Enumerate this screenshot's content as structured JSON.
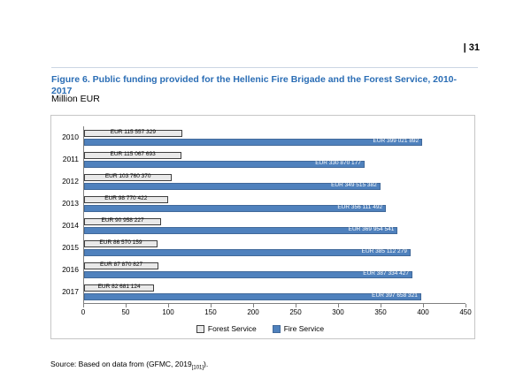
{
  "page": {
    "number": "| 31"
  },
  "figure": {
    "title": "Figure 6. Public funding provided for the Hellenic Fire Brigade and the Forest Service, 2010-2017",
    "unit_label": "Million EUR"
  },
  "source": {
    "prefix": "Source: Based on data from (GFMC, 2019",
    "ref": "[101]",
    "suffix": ")."
  },
  "chart_data": {
    "type": "bar",
    "orientation": "horizontal",
    "title": "Figure 6. Public funding provided for the Hellenic Fire Brigade and the Forest Service, 2010-2017",
    "unit": "Million EUR",
    "categories": [
      "2010",
      "2011",
      "2012",
      "2013",
      "2014",
      "2015",
      "2016",
      "2017"
    ],
    "series": [
      {
        "name": "Forest Service",
        "color": "#e9e9e9",
        "values_million": [
          115.56,
          115.07,
          103.76,
          98.77,
          90.96,
          86.57,
          87.87,
          82.68
        ],
        "value_labels": [
          "EUR 115 557 329",
          "EUR 115 067 693",
          "EUR 103 760 370",
          "EUR 98 770 422",
          "EUR 90 958 227",
          "EUR 86 570 159",
          "EUR 87 870 827",
          "EUR 82 681 124"
        ]
      },
      {
        "name": "Fire Service",
        "color": "#4f81bd",
        "values_million": [
          399.02,
          330.87,
          349.52,
          356.11,
          369.95,
          385.11,
          387.33,
          397.66
        ],
        "value_labels": [
          "EUR 399 021 892",
          "EUR 330 870 177",
          "EUR 349 515 382",
          "EUR 356 111 492",
          "EUR 369 954 541",
          "EUR 385 112 279",
          "EUR 387 334 427",
          "EUR 397 658 321"
        ]
      }
    ],
    "xlim": [
      0,
      450
    ],
    "xticks": [
      0,
      50,
      100,
      150,
      200,
      250,
      300,
      350,
      400,
      450
    ],
    "grid": false,
    "legend_position": "bottom"
  }
}
